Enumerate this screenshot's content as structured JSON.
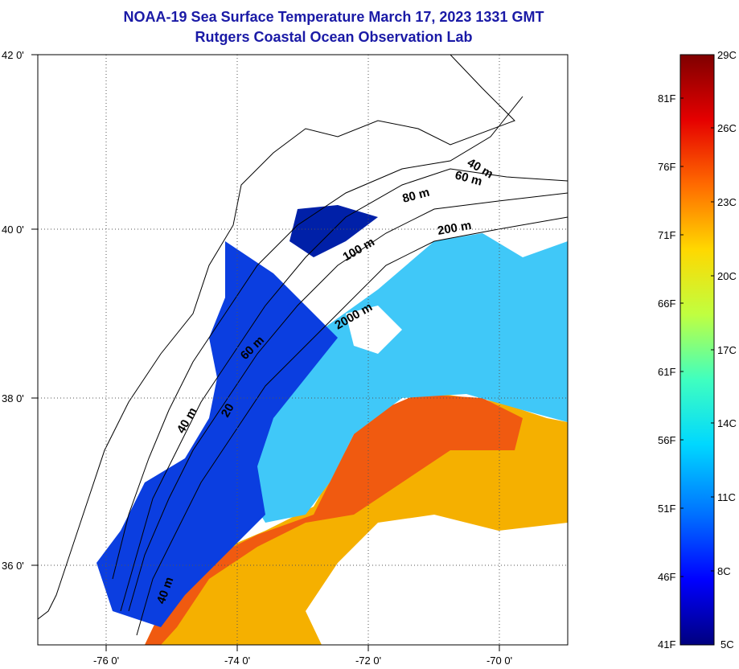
{
  "header": {
    "title": "NOAA-19 Sea Surface Temperature March 17, 2023 1331 GMT",
    "subtitle": "Rutgers Coastal Ocean Observation Lab"
  },
  "map": {
    "lat_labels": [
      "42 0'",
      "40 0'",
      "38 0'",
      "36 0'"
    ],
    "lon_labels": [
      "-76 0'",
      "-74 0'",
      "-72 0'",
      "-70 0'"
    ],
    "isobath_labels": [
      "40 m",
      "60 m",
      "80 m",
      "100 m",
      "200 m",
      "2000 m",
      "60 m",
      "40 m",
      "20",
      "40 m"
    ]
  },
  "colorbar": {
    "fahrenheit_labels": [
      "81F",
      "76F",
      "71F",
      "66F",
      "61F",
      "56F",
      "51F",
      "46F",
      "41F"
    ],
    "celsius_labels": [
      "29C",
      "26C",
      "23C",
      "20C",
      "17C",
      "14C",
      "11C",
      "8C",
      "5C"
    ],
    "colors": [
      "#00007f",
      "#0000ff",
      "#0070ff",
      "#00d8ff",
      "#40ffbf",
      "#c0ff40",
      "#ffd800",
      "#ff6a00",
      "#e50000",
      "#7f0000"
    ]
  }
}
